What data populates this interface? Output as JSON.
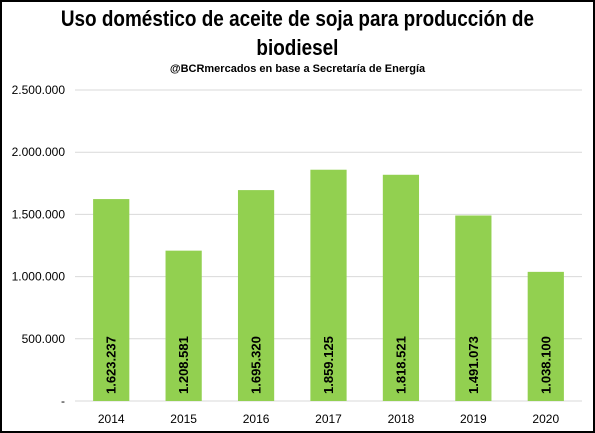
{
  "chart_data": {
    "type": "bar",
    "title": "Uso doméstico de aceite de soja para producción de biodiesel",
    "subtitle": "@BCRmercados en base a Secretaría de Energía",
    "categories": [
      "2014",
      "2015",
      "2016",
      "2017",
      "2018",
      "2019",
      "2020"
    ],
    "values": [
      1623237,
      1208581,
      1695320,
      1859125,
      1818521,
      1491073,
      1038100
    ],
    "data_labels": [
      "1.623.237",
      "1.208.581",
      "1.695.320",
      "1.859.125",
      "1.818.521",
      "1.491.073",
      "1.038.100"
    ],
    "ylim": [
      0,
      2500000
    ],
    "yticks": [
      0,
      500000,
      1000000,
      1500000,
      2000000,
      2500000
    ],
    "ytick_labels": [
      "-",
      "500.000",
      "1.000.000",
      "1.500.000",
      "2.000.000",
      "2.500.000"
    ],
    "xlabel": "",
    "ylabel": "",
    "grid": true,
    "legend": "none",
    "bar_color": "#92d050",
    "grid_color": "#d9d9d9"
  }
}
